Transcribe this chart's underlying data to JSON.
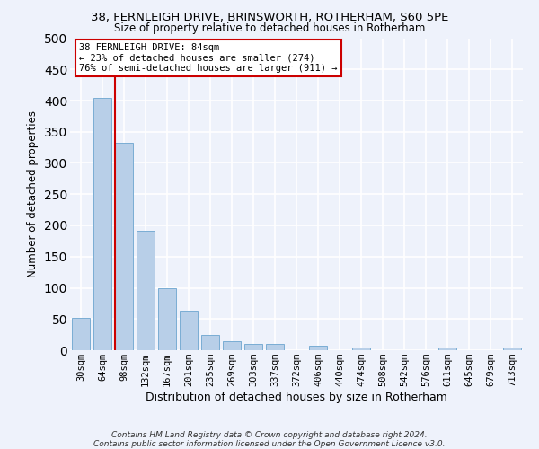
{
  "title_line1": "38, FERNLEIGH DRIVE, BRINSWORTH, ROTHERHAM, S60 5PE",
  "title_line2": "Size of property relative to detached houses in Rotherham",
  "xlabel": "Distribution of detached houses by size in Rotherham",
  "ylabel": "Number of detached properties",
  "categories": [
    "30sqm",
    "64sqm",
    "98sqm",
    "132sqm",
    "167sqm",
    "201sqm",
    "235sqm",
    "269sqm",
    "303sqm",
    "337sqm",
    "372sqm",
    "406sqm",
    "440sqm",
    "474sqm",
    "508sqm",
    "542sqm",
    "576sqm",
    "611sqm",
    "645sqm",
    "679sqm",
    "713sqm"
  ],
  "values": [
    52,
    405,
    333,
    192,
    99,
    63,
    25,
    14,
    10,
    10,
    0,
    7,
    0,
    5,
    0,
    0,
    0,
    5,
    0,
    0,
    5
  ],
  "bar_color": "#b8cfe8",
  "bar_edge_color": "#7aadd4",
  "ylim": [
    0,
    500
  ],
  "yticks": [
    0,
    50,
    100,
    150,
    200,
    250,
    300,
    350,
    400,
    450,
    500
  ],
  "vline_color": "#cc0000",
  "annotation_line1": "38 FERNLEIGH DRIVE: 84sqm",
  "annotation_line2": "← 23% of detached houses are smaller (274)",
  "annotation_line3": "76% of semi-detached houses are larger (911) →",
  "annotation_box_color": "#ffffff",
  "annotation_box_edge": "#cc0000",
  "footer_line1": "Contains HM Land Registry data © Crown copyright and database right 2024.",
  "footer_line2": "Contains public sector information licensed under the Open Government Licence v3.0.",
  "background_color": "#eef2fb",
  "grid_color": "#ffffff",
  "title1_fontsize": 9.5,
  "title2_fontsize": 8.5,
  "ylabel_fontsize": 8.5,
  "xlabel_fontsize": 9,
  "tick_fontsize": 7.5,
  "annot_fontsize": 7.5,
  "footer_fontsize": 6.5
}
